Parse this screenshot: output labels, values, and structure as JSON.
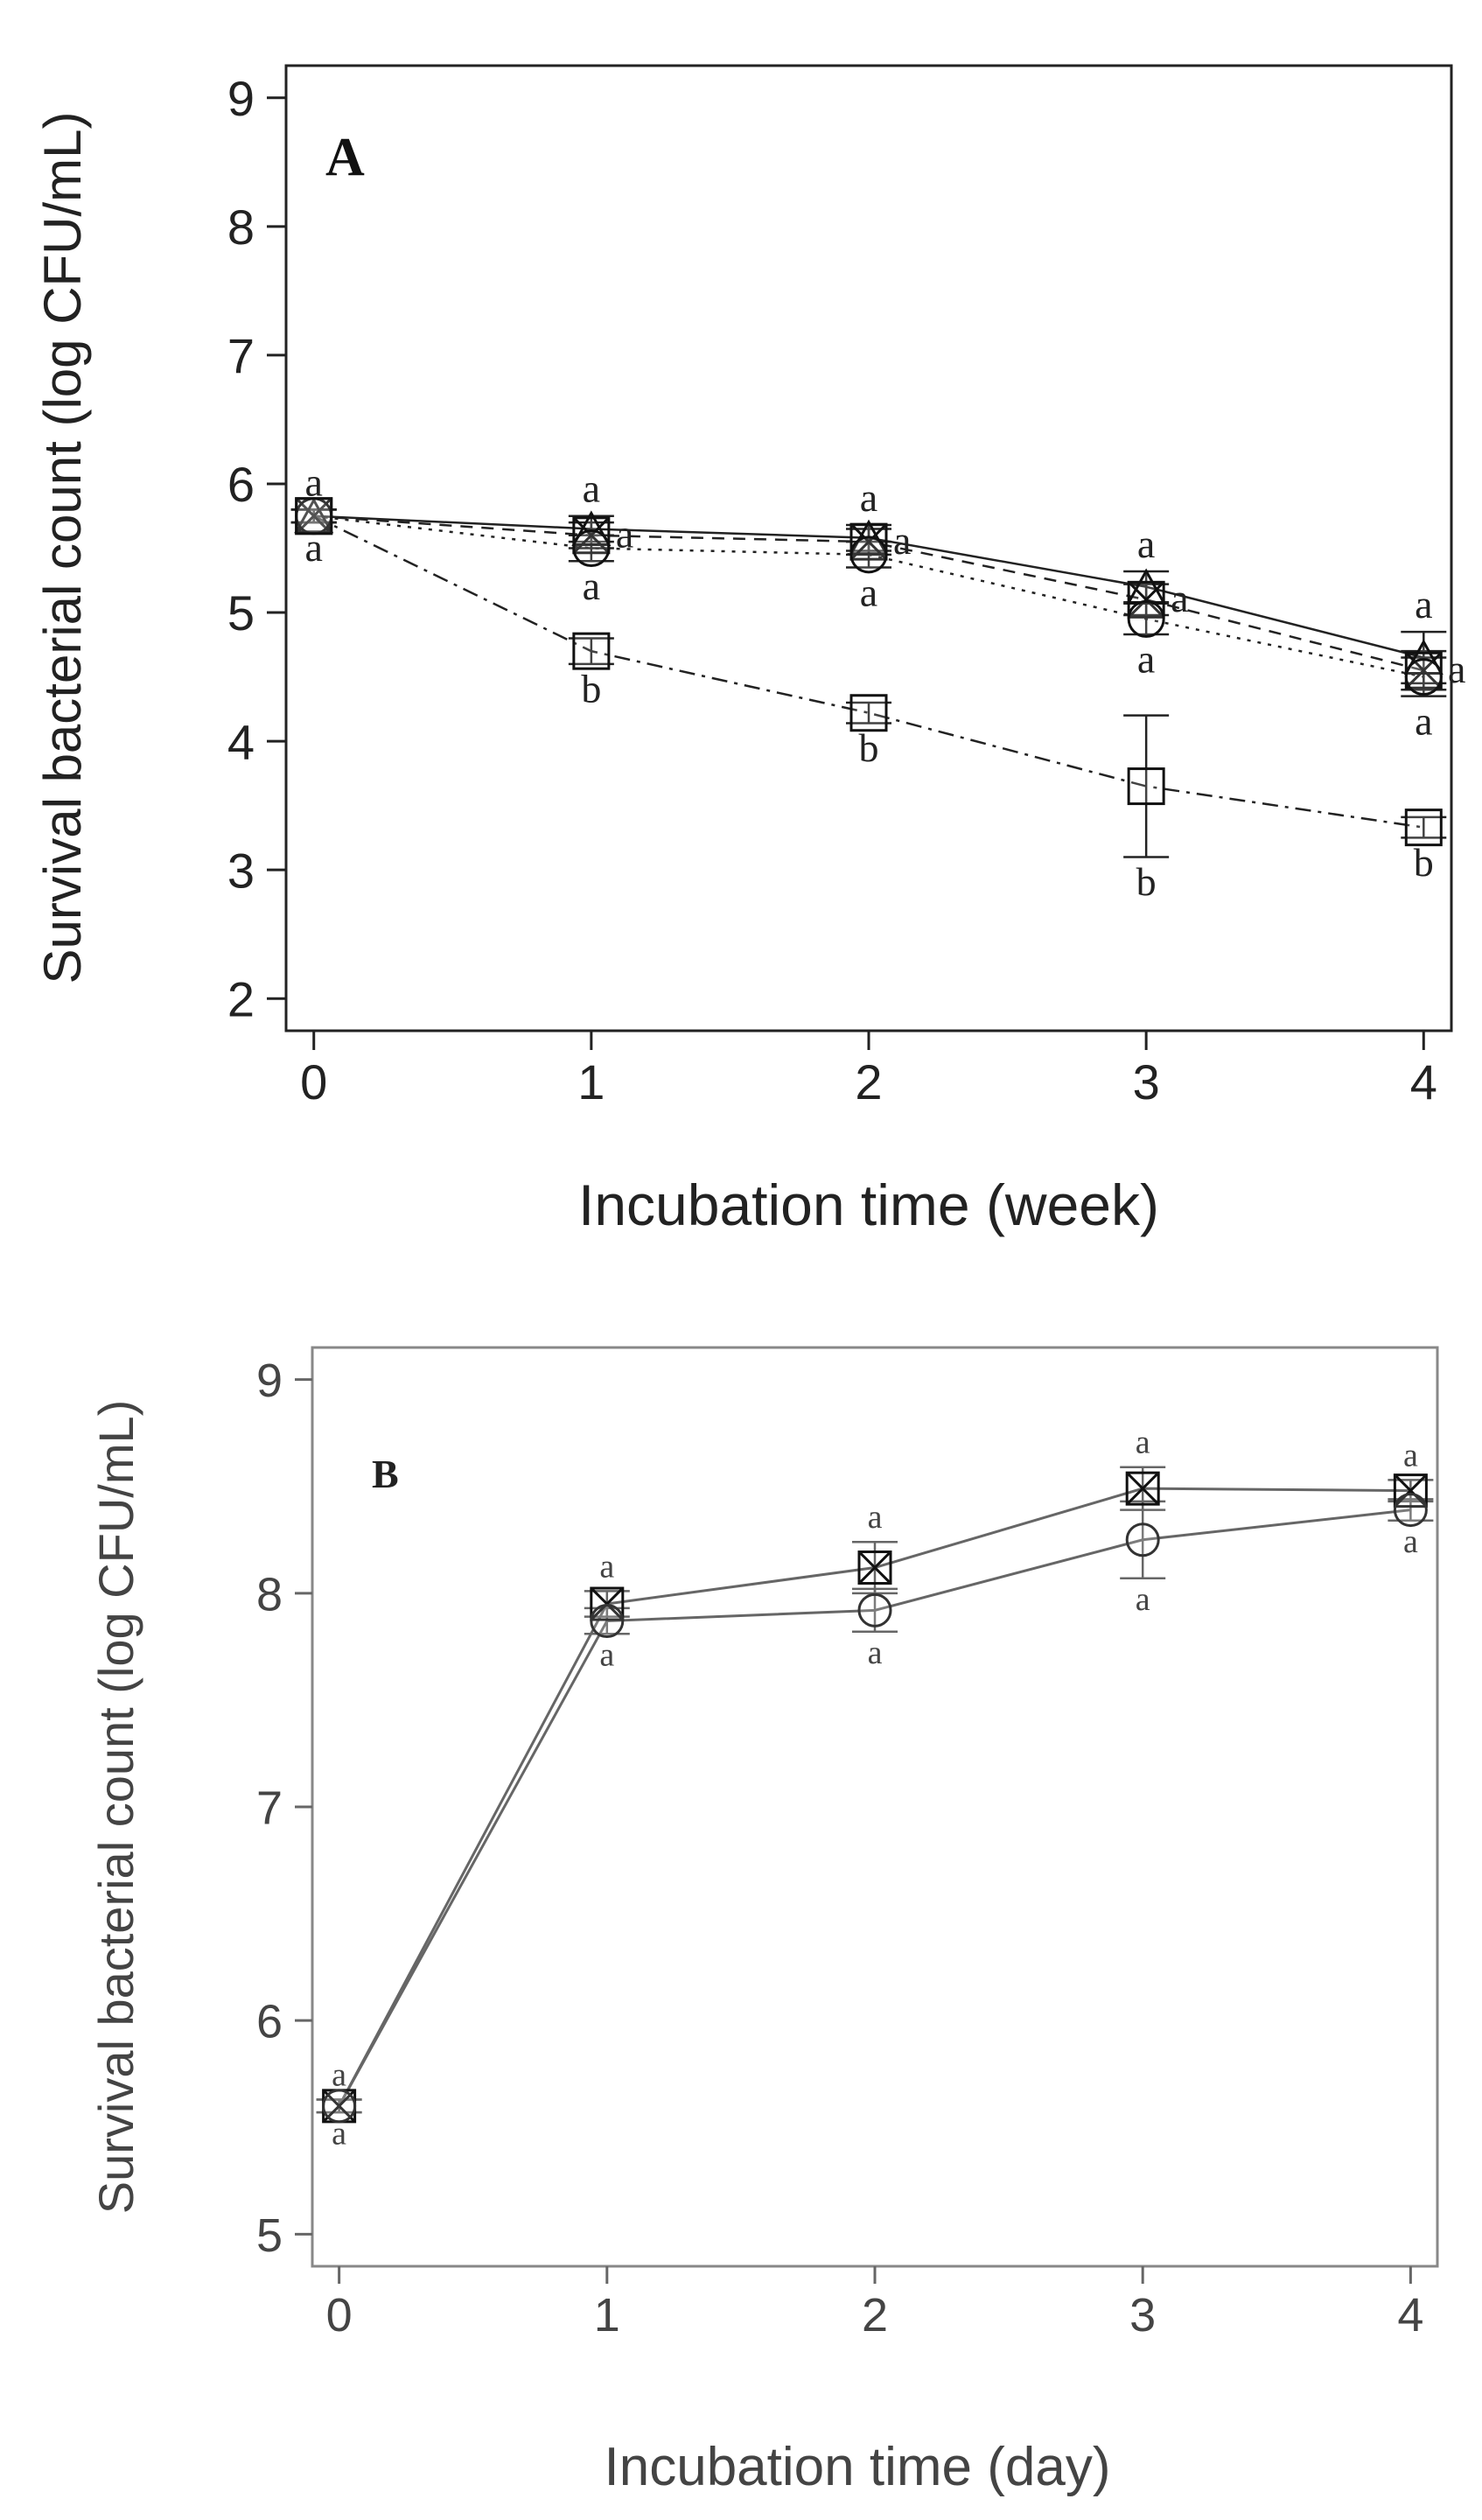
{
  "chart_data": [
    {
      "type": "line",
      "panel_label": "A",
      "xlabel": "Incubation time (week)",
      "ylabel": "Survival bacterial count (log CFU/mL)",
      "x": [
        0,
        1,
        2,
        3,
        4
      ],
      "xticks": [
        "0",
        "1",
        "2",
        "3",
        "4"
      ],
      "yticks": [
        "2",
        "3",
        "4",
        "5",
        "6",
        "7",
        "8",
        "9"
      ],
      "xlim": [
        -0.1,
        4.1
      ],
      "ylim": [
        1.75,
        9.25
      ],
      "grid": false,
      "series": [
        {
          "name": "Series 1 (triangle, solid)",
          "marker": "triangle",
          "line": "solid",
          "values": [
            5.75,
            5.65,
            5.58,
            5.2,
            4.65
          ],
          "err": [
            0.05,
            0.1,
            0.1,
            0.12,
            0.2
          ],
          "labels_above": [
            "a",
            "a",
            "a",
            "a",
            "a"
          ]
        },
        {
          "name": "Series 2 (square-x, dashed)",
          "marker": "square-x",
          "line": "dashed",
          "values": [
            5.75,
            5.6,
            5.55,
            5.1,
            4.55
          ],
          "err": [
            0.05,
            0.1,
            0.1,
            0.12,
            0.15
          ],
          "labels_right": [
            "",
            "a",
            "a",
            "a",
            "a"
          ]
        },
        {
          "name": "Series 3 (circle, dotted)",
          "marker": "circle",
          "line": "dotted",
          "values": [
            5.75,
            5.5,
            5.45,
            4.95,
            4.5
          ],
          "err": [
            0.05,
            0.1,
            0.1,
            0.12,
            0.15
          ],
          "labels_below": [
            "a",
            "a",
            "a",
            "a",
            "a"
          ]
        },
        {
          "name": "Series 4 (square, dash-dot)",
          "marker": "square",
          "line": "dashdot",
          "values": [
            5.75,
            4.7,
            4.22,
            3.65,
            3.33
          ],
          "err": [
            0.05,
            0.1,
            0.08,
            0.55,
            0.08
          ],
          "labels_below": [
            "",
            "b",
            "b",
            "b",
            "b"
          ]
        }
      ]
    },
    {
      "type": "line",
      "panel_label": "B",
      "xlabel": "Incubation time (day)",
      "ylabel": "Survival bacterial count (log CFU/mL)",
      "x": [
        0,
        1,
        2,
        3,
        4
      ],
      "xticks": [
        "0",
        "1",
        "2",
        "3",
        "4"
      ],
      "yticks": [
        "5",
        "6",
        "7",
        "8",
        "9"
      ],
      "xlim": [
        -0.1,
        4.1
      ],
      "ylim": [
        4.85,
        9.15
      ],
      "grid": false,
      "series": [
        {
          "name": "Series 1 (square-x)",
          "marker": "square-x",
          "line": "solid",
          "values": [
            5.6,
            7.95,
            8.12,
            8.49,
            8.48
          ],
          "err": [
            0.03,
            0.06,
            0.12,
            0.1,
            0.05
          ],
          "labels_above": [
            "a",
            "a",
            "a",
            "a",
            "a"
          ]
        },
        {
          "name": "Series 2 (circle)",
          "marker": "circle",
          "line": "solid",
          "values": [
            5.6,
            7.87,
            7.92,
            8.25,
            8.39
          ],
          "err": [
            0.03,
            0.06,
            0.1,
            0.18,
            0.05
          ],
          "labels_below": [
            "a",
            "a",
            "a",
            "a",
            "a"
          ]
        }
      ]
    }
  ]
}
